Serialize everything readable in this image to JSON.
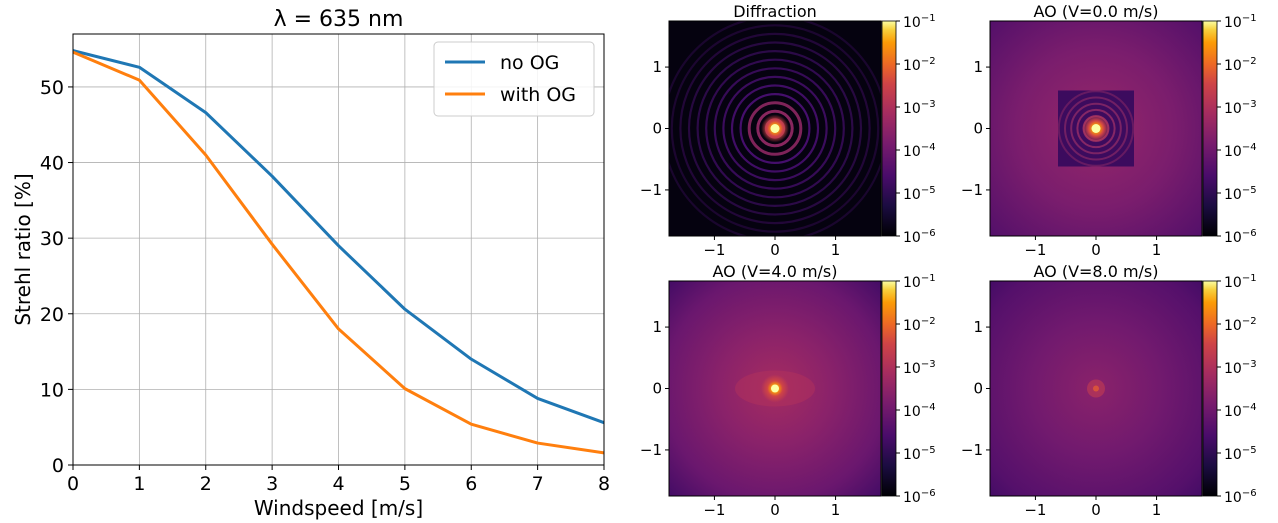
{
  "chart_data": [
    {
      "type": "line",
      "title": "λ = 635 nm",
      "xlabel": "Windspeed [m/s]",
      "ylabel": "Strehl ratio [%]",
      "xlim": [
        0,
        8
      ],
      "ylim": [
        0,
        57
      ],
      "xticks": [
        "0",
        "1",
        "2",
        "3",
        "4",
        "5",
        "6",
        "7",
        "8"
      ],
      "yticks": [
        "0",
        "10",
        "20",
        "30",
        "40",
        "50"
      ],
      "grid": true,
      "legend_position": "top-right",
      "x": [
        0,
        1,
        2,
        3,
        4,
        5,
        6,
        7,
        8
      ],
      "series": [
        {
          "name": "no OG",
          "color": "#1f77b4",
          "values": [
            54.8,
            52.6,
            46.6,
            38.2,
            29.0,
            20.6,
            14.0,
            8.8,
            5.6
          ]
        },
        {
          "name": "with OG",
          "color": "#ff7f0e",
          "values": [
            54.6,
            50.9,
            41.0,
            29.2,
            18.0,
            10.1,
            5.4,
            2.9,
            1.6
          ]
        }
      ]
    },
    {
      "type": "heatmap",
      "title": "Diffraction",
      "xlim": [
        -1.75,
        1.75
      ],
      "ylim": [
        -1.75,
        1.75
      ],
      "xticks": [
        "−1",
        "0",
        "1"
      ],
      "yticks": [
        "1",
        "0",
        "−1"
      ],
      "colormap": "inferno",
      "colorbar_scale": "log",
      "colorbar_ticks": [
        "10−1",
        "10−2",
        "10−3",
        "10−4",
        "10−5",
        "10−6"
      ],
      "pattern": "airy-rings"
    },
    {
      "type": "heatmap",
      "title": "AO (V=0.0 m/s)",
      "xlim": [
        -1.75,
        1.75
      ],
      "ylim": [
        -1.75,
        1.75
      ],
      "xticks": [
        "−1",
        "0",
        "1"
      ],
      "yticks": [
        "1",
        "0",
        "−1"
      ],
      "colormap": "inferno",
      "colorbar_scale": "log",
      "colorbar_ticks": [
        "10−1",
        "10−2",
        "10−3",
        "10−4",
        "10−5",
        "10−6"
      ],
      "pattern": "corrected-square-halo"
    },
    {
      "type": "heatmap",
      "title": "AO (V=4.0 m/s)",
      "xlim": [
        -1.75,
        1.75
      ],
      "ylim": [
        -1.75,
        1.75
      ],
      "xticks": [
        "−1",
        "0",
        "1"
      ],
      "yticks": [
        "1",
        "0",
        "−1"
      ],
      "colormap": "inferno",
      "colorbar_scale": "log",
      "colorbar_ticks": [
        "10−1",
        "10−2",
        "10−3",
        "10−4",
        "10−5",
        "10−6"
      ],
      "pattern": "butterfly-halo"
    },
    {
      "type": "heatmap",
      "title": "AO (V=8.0 m/s)",
      "xlim": [
        -1.75,
        1.75
      ],
      "ylim": [
        -1.75,
        1.75
      ],
      "xticks": [
        "−1",
        "0",
        "1"
      ],
      "yticks": [
        "1",
        "0",
        "−1"
      ],
      "colormap": "inferno",
      "colorbar_scale": "log",
      "colorbar_ticks": [
        "10−1",
        "10−2",
        "10−3",
        "10−4",
        "10−5",
        "10−6"
      ],
      "pattern": "diffuse-halo"
    }
  ]
}
